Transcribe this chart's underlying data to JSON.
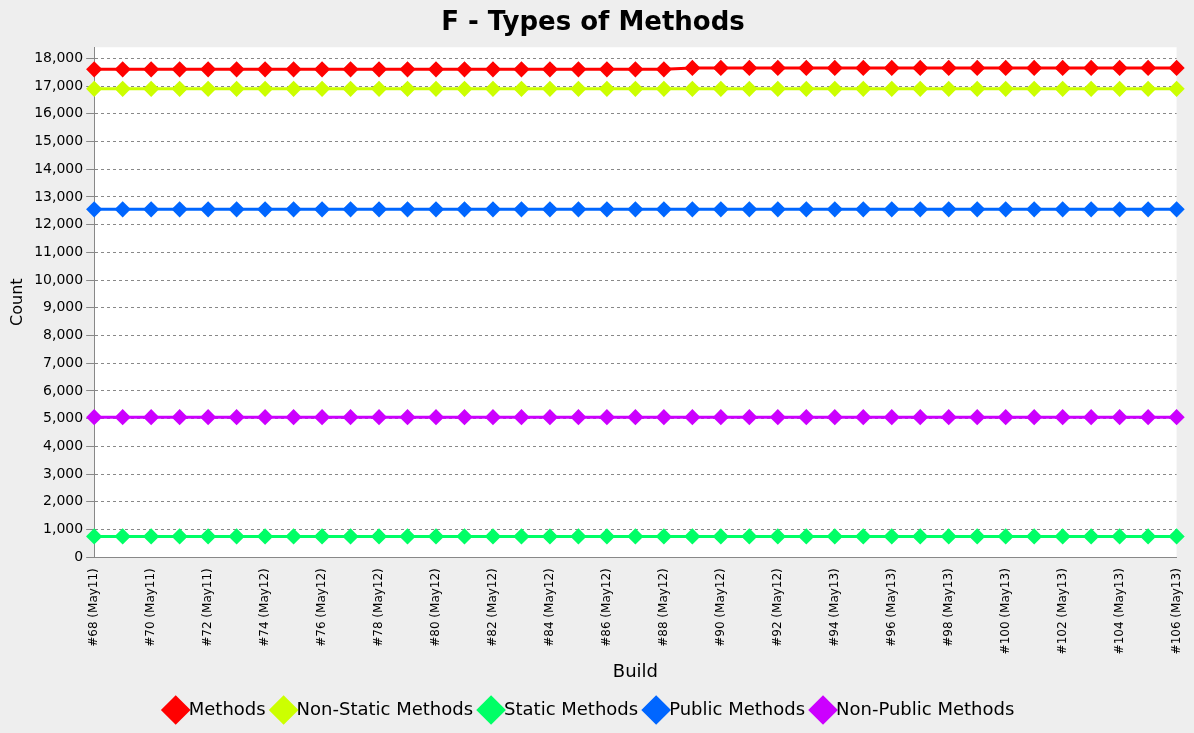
{
  "chart_data": {
    "type": "line",
    "title": "F - Types of Methods",
    "xlabel": "Build",
    "ylabel": "Count",
    "categories": [
      "#68 (May11)",
      null,
      "#70 (May11)",
      null,
      "#72 (May11)",
      null,
      "#74 (May12)",
      null,
      "#76 (May12)",
      null,
      "#78 (May12)",
      null,
      "#80 (May12)",
      null,
      "#82 (May12)",
      null,
      "#84 (May12)",
      null,
      "#86 (May12)",
      null,
      "#88 (May12)",
      null,
      "#90 (May12)",
      null,
      "#92 (May12)",
      null,
      "#94 (May13)",
      null,
      "#96 (May13)",
      null,
      "#98 (May13)",
      null,
      "#100 (May13)",
      null,
      "#102 (May13)",
      null,
      "#104 (May13)",
      null,
      "#106 (May13)"
    ],
    "series": [
      {
        "name": "Methods",
        "color": "#ff0000",
        "values": [
          17600,
          17600,
          17600,
          17600,
          17600,
          17600,
          17600,
          17600,
          17600,
          17600,
          17600,
          17600,
          17600,
          17600,
          17600,
          17600,
          17600,
          17600,
          17600,
          17600,
          17600,
          17650,
          17650,
          17650,
          17650,
          17650,
          17650,
          17650,
          17650,
          17650,
          17650,
          17650,
          17650,
          17650,
          17650,
          17650,
          17650,
          17650,
          17650
        ]
      },
      {
        "name": "Non-Static Methods",
        "color": "#ccff00",
        "values": [
          16900,
          16900,
          16900,
          16900,
          16900,
          16900,
          16900,
          16900,
          16900,
          16900,
          16900,
          16900,
          16900,
          16900,
          16900,
          16900,
          16900,
          16900,
          16900,
          16900,
          16900,
          16900,
          16900,
          16900,
          16900,
          16900,
          16900,
          16900,
          16900,
          16900,
          16900,
          16900,
          16900,
          16900,
          16900,
          16900,
          16900,
          16900,
          16900
        ]
      },
      {
        "name": "Static Methods",
        "color": "#00ff66",
        "values": [
          750,
          750,
          750,
          750,
          750,
          750,
          750,
          750,
          750,
          750,
          750,
          750,
          750,
          750,
          750,
          750,
          750,
          750,
          750,
          750,
          750,
          750,
          750,
          750,
          750,
          750,
          750,
          750,
          750,
          750,
          750,
          750,
          750,
          750,
          750,
          750,
          750,
          750,
          750
        ]
      },
      {
        "name": "Public Methods",
        "color": "#0066ff",
        "values": [
          12550,
          12550,
          12550,
          12550,
          12550,
          12550,
          12550,
          12550,
          12550,
          12550,
          12550,
          12550,
          12550,
          12550,
          12550,
          12550,
          12550,
          12550,
          12550,
          12550,
          12550,
          12550,
          12550,
          12550,
          12550,
          12550,
          12550,
          12550,
          12550,
          12550,
          12550,
          12550,
          12550,
          12550,
          12550,
          12550,
          12550,
          12550,
          12550
        ]
      },
      {
        "name": "Non-Public Methods",
        "color": "#cc00ff",
        "values": [
          5050,
          5050,
          5050,
          5050,
          5050,
          5050,
          5050,
          5050,
          5050,
          5050,
          5050,
          5050,
          5050,
          5050,
          5050,
          5050,
          5050,
          5050,
          5050,
          5050,
          5050,
          5050,
          5050,
          5050,
          5050,
          5050,
          5050,
          5050,
          5050,
          5050,
          5050,
          5050,
          5050,
          5050,
          5050,
          5050,
          5050,
          5050,
          5050
        ]
      }
    ],
    "ylim": [
      0,
      18400
    ],
    "yticks": [
      {
        "value": 0,
        "label": "0"
      },
      {
        "value": 1000,
        "label": "1,000"
      },
      {
        "value": 2000,
        "label": "2,000"
      },
      {
        "value": 3000,
        "label": "3,000"
      },
      {
        "value": 4000,
        "label": "4,000"
      },
      {
        "value": 5000,
        "label": "5,000"
      },
      {
        "value": 6000,
        "label": "6,000"
      },
      {
        "value": 7000,
        "label": "7,000"
      },
      {
        "value": 8000,
        "label": "8,000"
      },
      {
        "value": 9000,
        "label": "9,000"
      },
      {
        "value": 10000,
        "label": "10,000"
      },
      {
        "value": 11000,
        "label": "11,000"
      },
      {
        "value": 12000,
        "label": "12,000"
      },
      {
        "value": 13000,
        "label": "13,000"
      },
      {
        "value": 14000,
        "label": "14,000"
      },
      {
        "value": 15000,
        "label": "15,000"
      },
      {
        "value": 16000,
        "label": "16,000"
      },
      {
        "value": 17000,
        "label": "17,000"
      },
      {
        "value": 18000,
        "label": "18,000"
      }
    ],
    "grid": "y",
    "legend": "bottom",
    "marker": "diamond",
    "line_style": "solid"
  }
}
